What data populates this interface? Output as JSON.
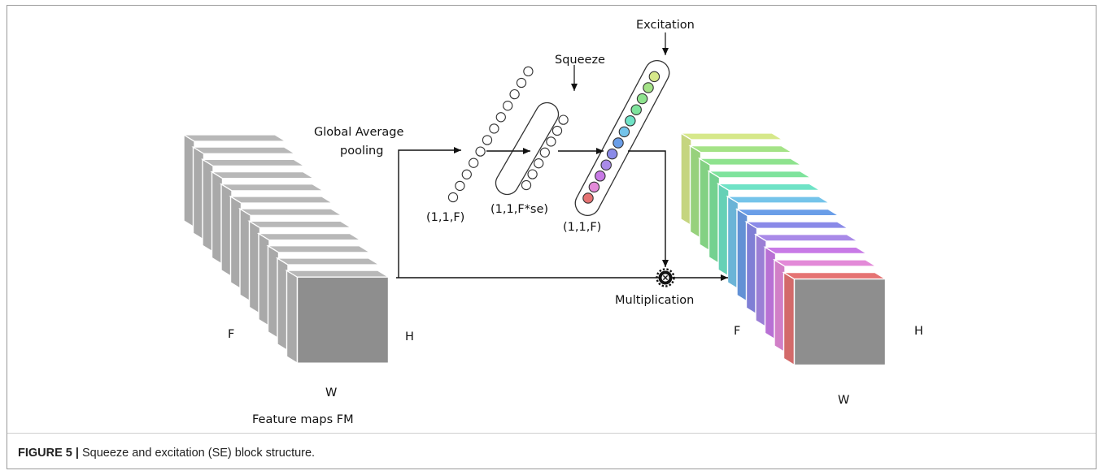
{
  "labels": {
    "global_avg": "Global Average",
    "pooling": "pooling",
    "squeeze": "Squeeze",
    "excitation": "Excitation",
    "pooled_dims": "(1,1,F)",
    "squeezed_dims": "(1,1,F*se)",
    "excited_dims": "(1,1,F)",
    "multiplication": "Multiplication",
    "input_f": "F",
    "input_h": "H",
    "input_w": "W",
    "input_title": "Feature maps FM",
    "output_f": "F",
    "output_h": "H",
    "output_w": "W"
  },
  "caption": {
    "figure_label": "FIGURE 5 |",
    "text": "Squeeze and excitation (SE) block structure."
  },
  "excitation_colors": [
    "#e57373",
    "#e38ad8",
    "#c87ae6",
    "#a98ae8",
    "#8a8ae8",
    "#6a9ee8",
    "#74c4ea",
    "#6fe3c6",
    "#7ee39c",
    "#8ee38e",
    "#a4e387",
    "#d6e88a"
  ],
  "output_slice_colors": [
    "#d6e88a",
    "#a4e387",
    "#8ee38e",
    "#7ee39c",
    "#6fe3c6",
    "#74c4ea",
    "#6a9ee8",
    "#8a8ae8",
    "#a98ae8",
    "#c87ae6",
    "#e38ad8",
    "#e57373"
  ],
  "input_slice_color": "#b8b8b8",
  "front_face_color": "#8e8e8e"
}
